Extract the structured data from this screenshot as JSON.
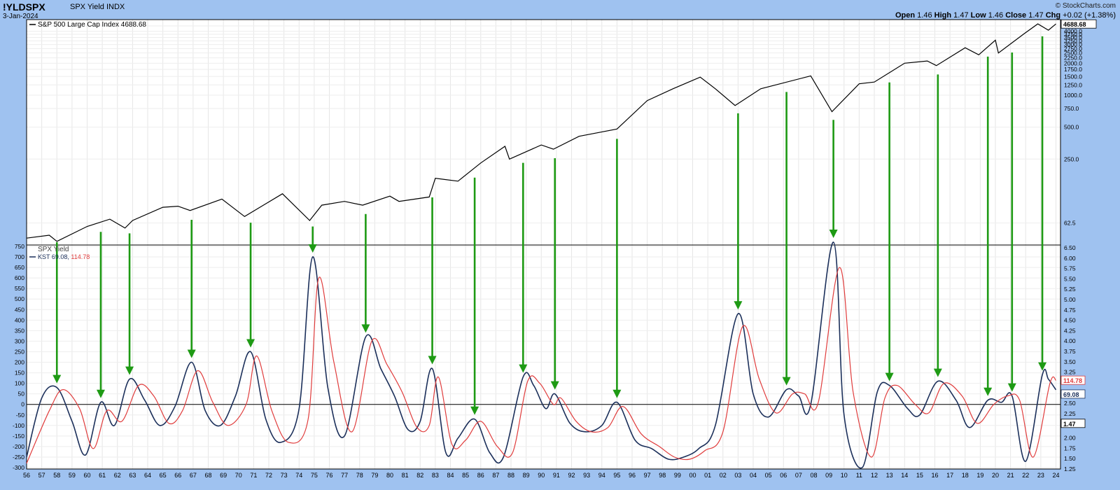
{
  "header": {
    "symbol": "!YLDSPX",
    "description": "SPX Yield INDX",
    "date": "3-Jan-2024",
    "watermark": "© StockCharts.com",
    "open_label": "Open",
    "open": "1.46",
    "high_label": "High",
    "high": "1.47",
    "low_label": "Low",
    "low": "1.46",
    "close_label": "Close",
    "close": "1.47",
    "chg_label": "Chg",
    "chg": "+0.02 (+1.38%)"
  },
  "chart_data": [
    {
      "type": "line",
      "title": "S&P 500 Large Cap Index 4688.68",
      "scale": "log",
      "last_value_label": "4688.68",
      "axis_ticks": [
        "4500.0",
        "4000.0",
        "3750.0",
        "3500.0",
        "3250.0",
        "3000.0",
        "2750.0",
        "2500.0",
        "2250.0",
        "2000.0",
        "1750.0",
        "1500.0",
        "1250.0",
        "1000.0",
        "750.0",
        "500.0",
        "250.0",
        "62.5"
      ],
      "x": [
        1956.0,
        1957.5,
        1958.0,
        1960.0,
        1961.5,
        1962.5,
        1963.0,
        1965.0,
        1966.0,
        1966.8,
        1968.9,
        1970.4,
        1972.9,
        1974.7,
        1975.5,
        1977.0,
        1978.2,
        1980.0,
        1980.6,
        1982.6,
        1983.0,
        1984.5,
        1986.0,
        1987.6,
        1987.9,
        1990.0,
        1990.8,
        1992.5,
        1995.0,
        1997.0,
        1998.7,
        2000.5,
        2001.5,
        2002.8,
        2004.5,
        2007.8,
        2009.2,
        2011.0,
        2012.0,
        2014.0,
        2015.5,
        2016.1,
        2018.0,
        2018.9,
        2020.0,
        2020.2,
        2021.9,
        2022.8,
        2023.5,
        2024.0
      ],
      "y": [
        45,
        48,
        42,
        58,
        68,
        56,
        66,
        88,
        90,
        82,
        105,
        72,
        118,
        66,
        92,
        100,
        92,
        112,
        100,
        110,
        165,
        155,
        230,
        330,
        250,
        340,
        310,
        410,
        480,
        890,
        1150,
        1480,
        1150,
        800,
        1150,
        1520,
        700,
        1280,
        1330,
        2000,
        2100,
        1900,
        2800,
        2400,
        3300,
        2500,
        3800,
        4700,
        4100,
        4688.68
      ],
      "arrow_count": 22
    },
    {
      "type": "line",
      "title": "SPX Yield",
      "ylim": [
        -300,
        750
      ],
      "y_ticks": [
        750,
        700,
        650,
        600,
        550,
        500,
        450,
        400,
        350,
        300,
        250,
        200,
        150,
        100,
        50,
        0,
        -50,
        -100,
        -150,
        -200,
        -250,
        -300
      ],
      "right_ticks": [
        "6.50",
        "6.00",
        "5.75",
        "5.50",
        "5.25",
        "5.00",
        "4.75",
        "4.50",
        "4.25",
        "4.00",
        "3.75",
        "3.50",
        "3.25",
        "3.00",
        "2.75",
        "2.50",
        "2.25",
        "2.00",
        "1.75",
        "1.50",
        "1.25"
      ],
      "right_labels": {
        "kst": "69.08",
        "signal": "114.78",
        "yield": "1.47"
      },
      "x_ticks": [
        "56",
        "57",
        "58",
        "59",
        "60",
        "61",
        "62",
        "63",
        "64",
        "65",
        "66",
        "67",
        "68",
        "69",
        "70",
        "71",
        "72",
        "73",
        "74",
        "75",
        "76",
        "77",
        "78",
        "79",
        "80",
        "81",
        "82",
        "83",
        "84",
        "85",
        "86",
        "87",
        "88",
        "89",
        "90",
        "91",
        "92",
        "93",
        "94",
        "95",
        "96",
        "97",
        "98",
        "99",
        "00",
        "01",
        "02",
        "03",
        "04",
        "05",
        "06",
        "07",
        "08",
        "09",
        "10",
        "11",
        "12",
        "13",
        "14",
        "15",
        "16",
        "17",
        "18",
        "19",
        "20",
        "21",
        "22",
        "23",
        "24"
      ],
      "legend": "KST 69.08, 114.78",
      "series": [
        {
          "name": "KST",
          "color": "#1b2f5a",
          "x": [
            1956.0,
            1957.0,
            1958.0,
            1959.0,
            1959.9,
            1960.9,
            1961.8,
            1962.8,
            1963.8,
            1964.8,
            1965.8,
            1966.9,
            1967.8,
            1968.8,
            1969.8,
            1970.8,
            1971.8,
            1972.8,
            1974.0,
            1974.9,
            1975.9,
            1977.0,
            1978.4,
            1979.4,
            1980.3,
            1981.2,
            1982.0,
            1982.8,
            1983.7,
            1984.5,
            1985.6,
            1986.6,
            1987.5,
            1988.8,
            1989.5,
            1990.3,
            1990.9,
            1991.9,
            1992.9,
            1994.0,
            1995.0,
            1996.2,
            1997.3,
            1998.4,
            1999.4,
            2000.4,
            2001.5,
            2003.0,
            2004.0,
            2005.0,
            2006.2,
            2007.0,
            2007.8,
            2009.3,
            2010.0,
            2011.2,
            2012.2,
            2013.0,
            2014.2,
            2015.0,
            2016.2,
            2017.4,
            2018.3,
            2019.5,
            2020.4,
            2021.1,
            2022.0,
            2023.1,
            2023.5,
            2024.0
          ],
          "y": [
            -250,
            30,
            80,
            -80,
            -240,
            10,
            -100,
            120,
            20,
            -100,
            -10,
            200,
            -30,
            -100,
            40,
            250,
            -70,
            -180,
            -20,
            700,
            80,
            -150,
            320,
            170,
            40,
            -120,
            -80,
            170,
            -230,
            -160,
            -70,
            -230,
            -250,
            130,
            90,
            -20,
            50,
            -90,
            -130,
            -100,
            10,
            -170,
            -210,
            -260,
            -250,
            -210,
            -100,
            430,
            50,
            -60,
            70,
            40,
            0,
            770,
            -50,
            -300,
            60,
            90,
            -20,
            -50,
            110,
            20,
            -110,
            20,
            10,
            40,
            -270,
            140,
            120,
            69.08
          ]
        },
        {
          "name": "Signal",
          "color": "#e03c3c",
          "x": [
            1956.0,
            1957.5,
            1958.4,
            1959.5,
            1960.4,
            1961.3,
            1962.3,
            1963.4,
            1964.4,
            1965.4,
            1966.3,
            1967.3,
            1968.3,
            1969.3,
            1970.5,
            1971.2,
            1972.2,
            1973.3,
            1974.6,
            1975.3,
            1976.3,
            1977.5,
            1978.8,
            1979.8,
            1980.8,
            1981.8,
            1982.6,
            1983.2,
            1984.1,
            1985.0,
            1986.0,
            1987.1,
            1988.1,
            1989.1,
            1989.9,
            1990.8,
            1991.3,
            1992.3,
            1993.3,
            1994.4,
            1995.4,
            1996.6,
            1997.8,
            1998.8,
            1999.8,
            2000.8,
            2002.0,
            2003.3,
            2004.4,
            2005.5,
            2006.6,
            2007.4,
            2008.3,
            2009.7,
            2010.6,
            2011.8,
            2012.7,
            2013.5,
            2014.7,
            2015.6,
            2016.6,
            2017.8,
            2018.8,
            2019.9,
            2020.8,
            2021.6,
            2022.5,
            2023.6,
            2024.0
          ],
          "y": [
            -280,
            -30,
            70,
            -20,
            -210,
            -30,
            -80,
            90,
            40,
            -90,
            -30,
            160,
            10,
            -100,
            0,
            230,
            -30,
            -180,
            -70,
            600,
            200,
            -130,
            300,
            190,
            60,
            -110,
            -100,
            130,
            -190,
            -170,
            -80,
            -200,
            -230,
            110,
            100,
            0,
            30,
            -80,
            -130,
            -110,
            -10,
            -140,
            -200,
            -250,
            -260,
            -220,
            -130,
            370,
            120,
            -40,
            50,
            50,
            10,
            650,
            60,
            -250,
            30,
            90,
            0,
            -40,
            100,
            40,
            -90,
            0,
            40,
            20,
            -250,
            100,
            114.78
          ]
        }
      ]
    }
  ]
}
